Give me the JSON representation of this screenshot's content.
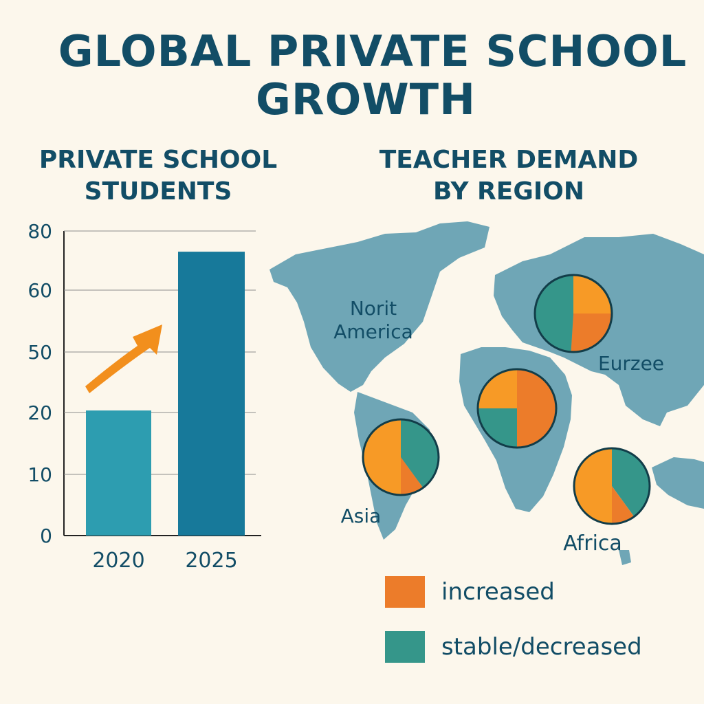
{
  "title_lines": [
    "GLOBAL PRIVATE SCHOOL",
    "GROWTH"
  ],
  "colors": {
    "background": "#fcf7ec",
    "title": "#124d66",
    "bar_2020": "#2d9db0",
    "bar_2025": "#17799a",
    "arrow": "#f28f1d",
    "map": "#6fa6b6",
    "increased": "#ec7c2a",
    "stable_decreased": "#35968a",
    "pie_orange": "#f79a26"
  },
  "chart_data": [
    {
      "type": "bar",
      "title_lines": [
        "PRIVATE SCHOOL",
        "STUDENTS"
      ],
      "categories": [
        "2020",
        "2025"
      ],
      "values": [
        21,
        73
      ],
      "y_tick_labels": [
        "0",
        "10",
        "20",
        "50",
        "60",
        "80"
      ],
      "ylim": [
        0,
        80
      ],
      "grid": true,
      "annotation_icon": "up-arrow-icon"
    },
    {
      "type": "pie",
      "title_lines": [
        "TEACHER DEMAND",
        "BY REGION"
      ],
      "background": "world-map",
      "map_labels": [
        {
          "id": "north-america",
          "lines": [
            "Norit",
            "America"
          ]
        },
        {
          "id": "europe",
          "lines": [
            "Eurzee"
          ]
        },
        {
          "id": "asia",
          "lines": [
            "Asia"
          ]
        },
        {
          "id": "africa",
          "lines": [
            "Africa"
          ]
        }
      ],
      "legend_position": "bottom-right",
      "legend": [
        {
          "label": "increased",
          "color": "#ec7c2a"
        },
        {
          "label": "stable/decreased",
          "color": "#35968a"
        }
      ],
      "pies": [
        {
          "id": "top",
          "slices": [
            {
              "category": "orange",
              "percent": 25
            },
            {
              "category": "increased",
              "percent": 26
            },
            {
              "category": "stable/decreased",
              "percent": 49
            }
          ]
        },
        {
          "id": "middle",
          "slices": [
            {
              "category": "increased",
              "percent": 50
            },
            {
              "category": "stable/decreased",
              "percent": 25
            },
            {
              "category": "orange",
              "percent": 25
            }
          ]
        },
        {
          "id": "left",
          "slices": [
            {
              "category": "stable/decreased",
              "percent": 40
            },
            {
              "category": "increased",
              "percent": 10
            },
            {
              "category": "orange",
              "percent": 50
            }
          ]
        },
        {
          "id": "right",
          "slices": [
            {
              "category": "stable/decreased",
              "percent": 40
            },
            {
              "category": "increased",
              "percent": 10
            },
            {
              "category": "orange",
              "percent": 50
            }
          ]
        }
      ]
    }
  ]
}
